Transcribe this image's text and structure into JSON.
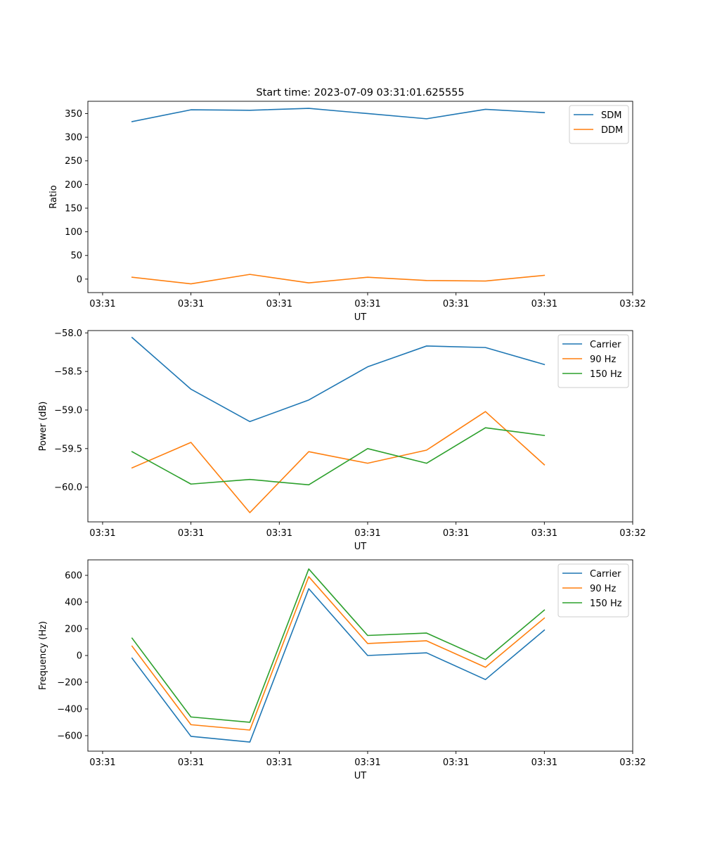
{
  "figure": {
    "title": "Start time: 2023-07-09 03:31:01.625555"
  },
  "chart_data": [
    {
      "type": "line",
      "title": "Start time: 2023-07-09 03:31:01.625555",
      "xlabel": "UT",
      "ylabel": "Ratio",
      "xlim": [
        -0.75,
        8.5
      ],
      "ylim": [
        -28.5,
        376
      ],
      "x_ticks": [
        -0.5,
        1,
        2.5,
        4,
        5.5,
        7,
        8.5
      ],
      "x_tick_labels": [
        "03:31",
        "03:31",
        "03:31",
        "03:31",
        "03:31",
        "03:31",
        "03:32"
      ],
      "y_ticks": [
        0,
        50,
        100,
        150,
        200,
        250,
        300,
        350
      ],
      "y_tick_labels": [
        "0",
        "50",
        "100",
        "150",
        "200",
        "250",
        "300",
        "350"
      ],
      "legend_position": "top-right",
      "x": [
        0,
        1,
        2,
        3,
        4,
        5,
        6,
        7
      ],
      "series": [
        {
          "name": "SDM",
          "color": "#1f77b4",
          "values": [
            333,
            358,
            357,
            361,
            350,
            339,
            359,
            352
          ]
        },
        {
          "name": "DDM",
          "color": "#ff7f0e",
          "values": [
            4,
            -10,
            10,
            -8,
            4,
            -3,
            -4,
            8
          ]
        }
      ]
    },
    {
      "type": "line",
      "title": "",
      "xlabel": "UT",
      "ylabel": "Power (dB)",
      "xlim": [
        -0.75,
        8.5
      ],
      "ylim": [
        -60.45,
        -57.97
      ],
      "x_ticks": [
        -0.5,
        1,
        2.5,
        4,
        5.5,
        7,
        8.5
      ],
      "x_tick_labels": [
        "03:31",
        "03:31",
        "03:31",
        "03:31",
        "03:31",
        "03:31",
        "03:32"
      ],
      "y_ticks": [
        -60.0,
        -59.5,
        -59.0,
        -58.5,
        -58.0
      ],
      "y_tick_labels": [
        "−60.0",
        "−59.5",
        "−59.0",
        "−58.5",
        "−58.0"
      ],
      "legend_position": "top-right",
      "x": [
        0,
        1,
        2,
        3,
        4,
        5,
        6,
        7
      ],
      "series": [
        {
          "name": "Carrier",
          "color": "#1f77b4",
          "values": [
            -58.06,
            -58.73,
            -59.15,
            -58.87,
            -58.44,
            -58.17,
            -58.19,
            -58.41
          ]
        },
        {
          "name": "90 Hz",
          "color": "#ff7f0e",
          "values": [
            -59.75,
            -59.42,
            -60.33,
            -59.54,
            -59.69,
            -59.52,
            -59.02,
            -59.71
          ]
        },
        {
          "name": "150 Hz",
          "color": "#2ca02c",
          "values": [
            -59.54,
            -59.96,
            -59.9,
            -59.97,
            -59.5,
            -59.69,
            -59.23,
            -59.33
          ]
        }
      ]
    },
    {
      "type": "line",
      "title": "",
      "xlabel": "UT",
      "ylabel": "Frequency (Hz)",
      "xlim": [
        -0.75,
        8.5
      ],
      "ylim": [
        -716,
        716
      ],
      "x_ticks": [
        -0.5,
        1,
        2.5,
        4,
        5.5,
        7,
        8.5
      ],
      "x_tick_labels": [
        "03:31",
        "03:31",
        "03:31",
        "03:31",
        "03:31",
        "03:31",
        "03:32"
      ],
      "y_ticks": [
        -600,
        -400,
        -200,
        0,
        200,
        400,
        600
      ],
      "y_tick_labels": [
        "−600",
        "−400",
        "−200",
        "0",
        "200",
        "400",
        "600"
      ],
      "legend_position": "top-right",
      "x": [
        0,
        1,
        2,
        3,
        4,
        5,
        6,
        7
      ],
      "series": [
        {
          "name": "Carrier",
          "color": "#1f77b4",
          "values": [
            -20,
            -605,
            -648,
            500,
            0,
            20,
            -180,
            190
          ]
        },
        {
          "name": "90 Hz",
          "color": "#ff7f0e",
          "values": [
            70,
            -518,
            -558,
            590,
            90,
            110,
            -88,
            280
          ]
        },
        {
          "name": "150 Hz",
          "color": "#2ca02c",
          "values": [
            130,
            -460,
            -500,
            648,
            150,
            168,
            -30,
            340
          ]
        }
      ]
    }
  ]
}
